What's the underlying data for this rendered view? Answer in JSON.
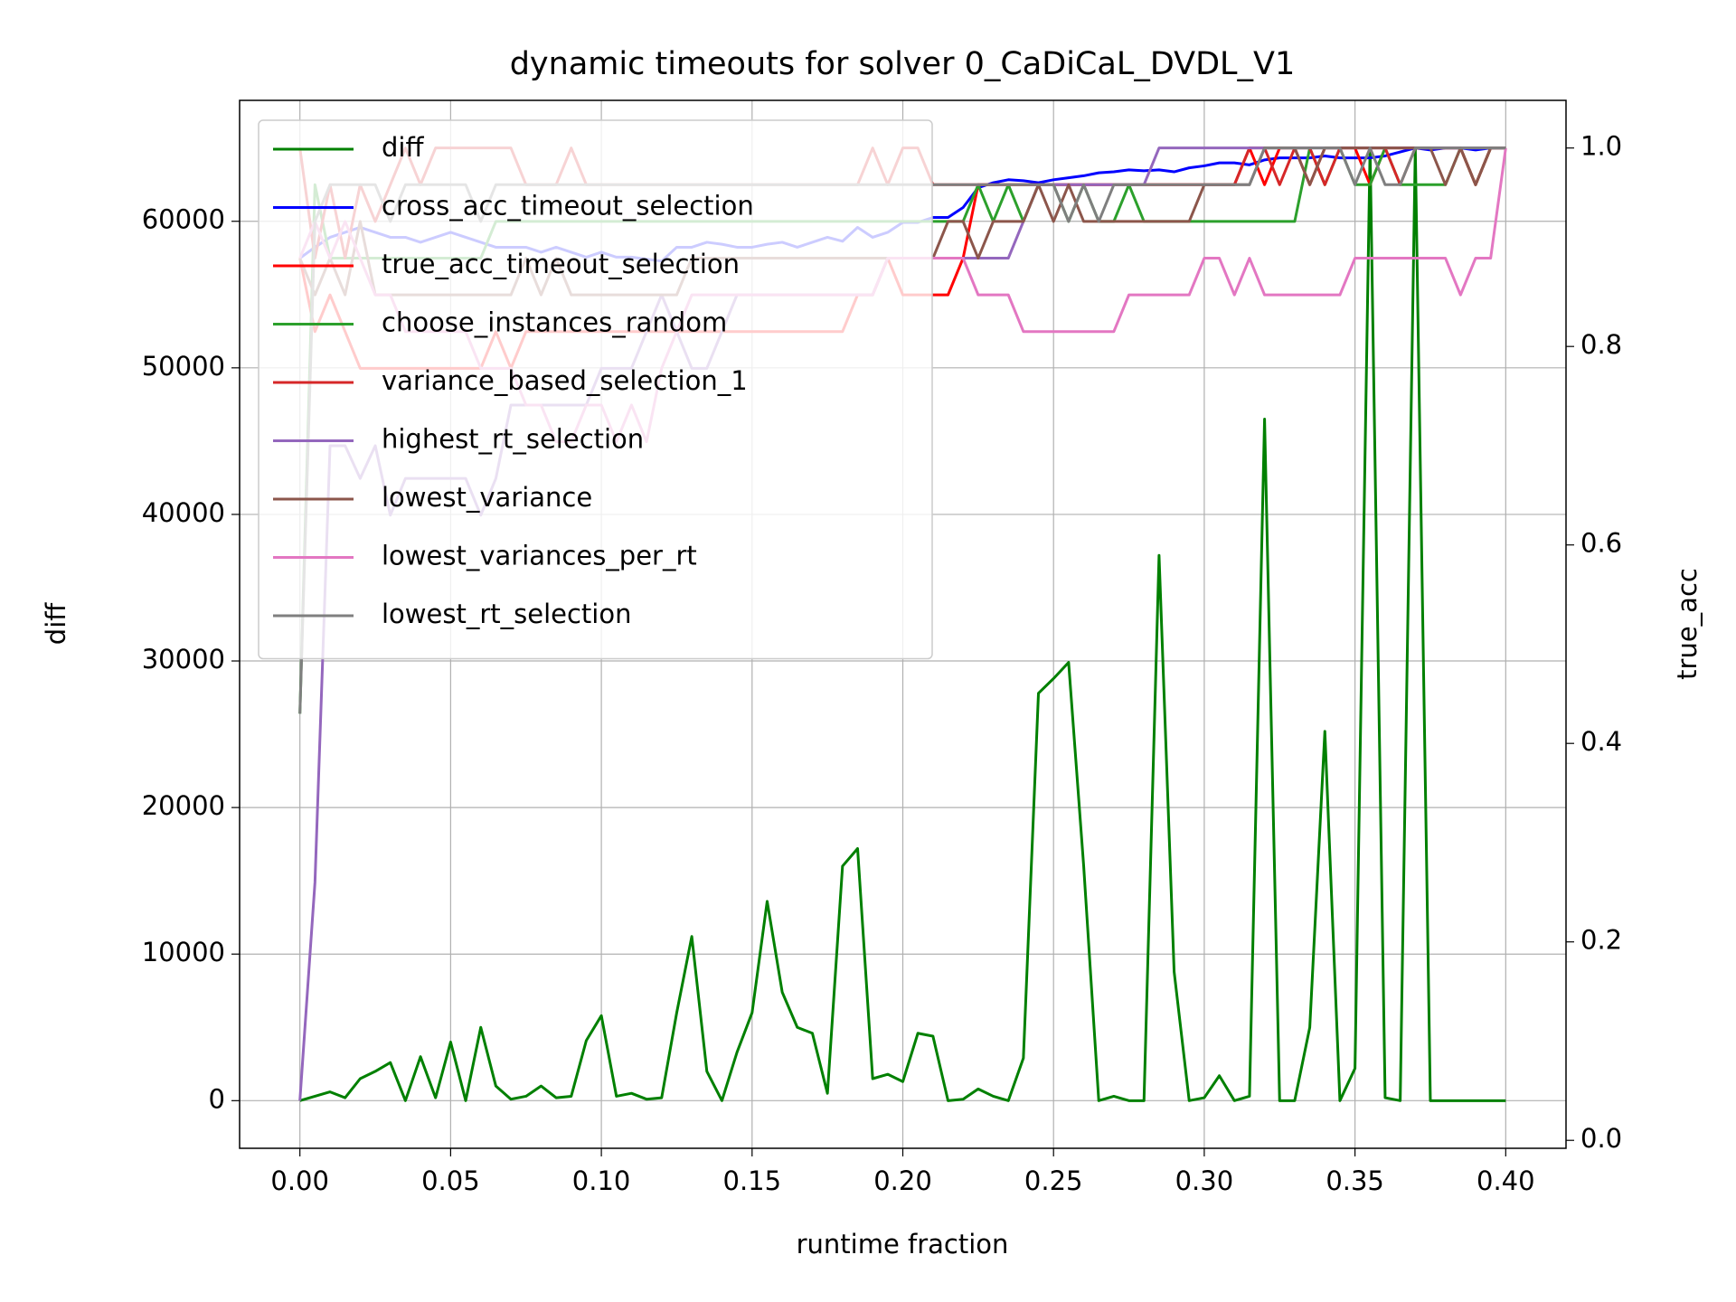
{
  "chart_data": {
    "type": "line",
    "title": "dynamic timeouts for solver 0_CaDiCaL_DVDL_V1",
    "x_label": "runtime fraction",
    "y_label": "diff",
    "y_label_color": "#008000",
    "y2_label": "true_acc",
    "y2_label_color": "#ff0000",
    "grid": true,
    "legend": "upper left",
    "xlim": [
      -0.02,
      0.42
    ],
    "xticks": [
      {
        "value": 0,
        "label": "0.00"
      },
      {
        "value": 0.05,
        "label": "0.05"
      },
      {
        "value": 0.1,
        "label": "0.10"
      },
      {
        "value": 0.15,
        "label": "0.15"
      },
      {
        "value": 0.2,
        "label": "0.20"
      },
      {
        "value": 0.25,
        "label": "0.25"
      },
      {
        "value": 0.3,
        "label": "0.30"
      },
      {
        "value": 0.35,
        "label": "0.35"
      },
      {
        "value": 0.4,
        "label": "0.40"
      }
    ],
    "ylim": [
      -3250,
      68250
    ],
    "yticks": [
      0,
      10000,
      20000,
      30000,
      40000,
      50000,
      60000
    ],
    "y2lim": [
      -0.008,
      1.048
    ],
    "y2ticks": [
      {
        "value": 0,
        "label": "0.0"
      },
      0.2,
      0.4,
      0.6,
      0.8,
      {
        "value": 1,
        "label": "1.0"
      }
    ],
    "x": [
      0,
      0.005,
      0.01,
      0.015,
      0.02,
      0.025,
      0.03,
      0.035,
      0.04,
      0.045,
      0.05,
      0.055,
      0.06,
      0.065,
      0.07,
      0.075,
      0.08,
      0.085,
      0.09,
      0.095,
      0.1,
      0.105,
      0.11,
      0.115,
      0.12,
      0.125,
      0.13,
      0.135,
      0.14,
      0.145,
      0.15,
      0.155,
      0.16,
      0.165,
      0.17,
      0.175,
      0.18,
      0.185,
      0.19,
      0.195,
      0.2,
      0.205,
      0.21,
      0.215,
      0.22,
      0.225,
      0.23,
      0.235,
      0.24,
      0.245,
      0.25,
      0.255,
      0.26,
      0.265,
      0.27,
      0.275,
      0.28,
      0.285,
      0.29,
      0.295,
      0.3,
      0.305,
      0.31,
      0.315,
      0.32,
      0.325,
      0.33,
      0.335,
      0.34,
      0.345,
      0.35,
      0.355,
      0.36,
      0.365,
      0.37,
      0.375,
      0.38,
      0.385,
      0.39,
      0.395,
      0.4
    ],
    "series": [
      {
        "name": "diff",
        "color": "#008000",
        "axis": "y",
        "values": [
          0,
          300,
          600,
          200,
          1500,
          2000,
          2600,
          0,
          3000,
          200,
          4000,
          0,
          5000,
          1000,
          100,
          300,
          1000,
          200,
          300,
          4100,
          5800,
          300,
          500,
          100,
          200,
          6000,
          11200,
          2000,
          0,
          3300,
          6000,
          13600,
          7400,
          5000,
          4600,
          500,
          16000,
          17200,
          1500,
          1800,
          1300,
          4600,
          4400,
          0,
          100,
          800,
          300,
          0,
          2900,
          27800,
          28800,
          29900,
          16000,
          0,
          300,
          0,
          0,
          37200,
          8800,
          0,
          200,
          1700,
          0,
          300,
          46500,
          0,
          0,
          5000,
          25200,
          0,
          2200,
          65000,
          200,
          0,
          65000,
          0,
          0,
          0,
          0,
          0,
          0
        ]
      },
      {
        "name": "cross_acc_timeout_selection",
        "color": "#0000ff",
        "axis": "y2",
        "values": [
          0.889,
          0.9,
          0.91,
          0.915,
          0.92,
          0.915,
          0.91,
          0.91,
          0.905,
          0.91,
          0.915,
          0.91,
          0.905,
          0.9,
          0.9,
          0.9,
          0.895,
          0.9,
          0.895,
          0.89,
          0.895,
          0.89,
          0.89,
          0.888,
          0.886,
          0.9,
          0.9,
          0.905,
          0.903,
          0.9,
          0.9,
          0.903,
          0.905,
          0.9,
          0.905,
          0.91,
          0.906,
          0.92,
          0.91,
          0.915,
          0.925,
          0.925,
          0.93,
          0.93,
          0.94,
          0.96,
          0.965,
          0.968,
          0.967,
          0.965,
          0.968,
          0.97,
          0.972,
          0.975,
          0.976,
          0.978,
          0.977,
          0.978,
          0.976,
          0.98,
          0.982,
          0.985,
          0.985,
          0.983,
          0.988,
          0.99,
          0.99,
          0.99,
          0.992,
          0.99,
          0.99,
          0.99,
          0.992,
          0.996,
          1.0,
          0.998,
          1.0,
          1.0,
          0.998,
          1.0,
          1.0
        ]
      },
      {
        "name": "true_acc_timeout_selection",
        "color": "#ff0000",
        "axis": "y2",
        "values": [
          0.889,
          0.815,
          0.852,
          0.815,
          0.778,
          0.778,
          0.778,
          0.778,
          0.778,
          0.778,
          0.778,
          0.778,
          0.778,
          0.815,
          0.778,
          0.815,
          0.815,
          0.815,
          0.815,
          0.815,
          0.815,
          0.815,
          0.815,
          0.815,
          0.815,
          0.815,
          0.815,
          0.815,
          0.815,
          0.815,
          0.815,
          0.815,
          0.815,
          0.815,
          0.815,
          0.815,
          0.815,
          0.852,
          0.852,
          0.889,
          0.852,
          0.852,
          0.852,
          0.852,
          0.889,
          0.963,
          0.963,
          0.963,
          0.963,
          0.963,
          0.963,
          0.963,
          0.963,
          0.963,
          0.963,
          0.963,
          0.963,
          0.963,
          0.963,
          0.963,
          0.963,
          0.963,
          0.963,
          1.0,
          0.963,
          1.0,
          1.0,
          0.963,
          1.0,
          1.0,
          1.0,
          0.963,
          1.0,
          1.0,
          1.0,
          1.0,
          1.0,
          1.0,
          0.963,
          1.0,
          1.0
        ]
      },
      {
        "name": "choose_instances_random",
        "color": "#2ca02c",
        "axis": "y2",
        "values": [
          0.43,
          0.963,
          0.889,
          0.889,
          0.889,
          0.889,
          0.889,
          0.889,
          0.889,
          0.889,
          0.889,
          0.889,
          0.889,
          0.926,
          0.926,
          0.926,
          0.926,
          0.926,
          0.926,
          0.926,
          0.926,
          0.926,
          0.926,
          0.926,
          0.926,
          0.926,
          0.926,
          0.926,
          0.926,
          0.926,
          0.926,
          0.926,
          0.926,
          0.926,
          0.926,
          0.926,
          0.926,
          0.926,
          0.926,
          0.926,
          0.926,
          0.926,
          0.926,
          0.926,
          0.926,
          0.963,
          0.926,
          0.963,
          0.926,
          0.963,
          0.963,
          0.926,
          0.963,
          0.926,
          0.926,
          0.963,
          0.926,
          0.926,
          0.926,
          0.926,
          0.926,
          0.926,
          0.926,
          0.926,
          0.926,
          0.926,
          0.926,
          1.0,
          0.963,
          1.0,
          0.963,
          0.963,
          1.0,
          0.963,
          0.963,
          0.963,
          0.963,
          1.0,
          0.963,
          1.0,
          1.0
        ]
      },
      {
        "name": "variance_based_selection_1",
        "color": "#d62728",
        "axis": "y2",
        "values": [
          1.0,
          0.889,
          0.963,
          0.889,
          0.963,
          0.926,
          0.963,
          1.0,
          0.963,
          1.0,
          1.0,
          1.0,
          1.0,
          1.0,
          1.0,
          0.963,
          0.963,
          0.963,
          1.0,
          0.963,
          0.963,
          0.963,
          0.963,
          0.963,
          0.963,
          0.963,
          0.963,
          0.963,
          0.963,
          0.963,
          0.963,
          0.963,
          0.963,
          0.963,
          0.963,
          0.963,
          0.963,
          0.963,
          1.0,
          0.963,
          1.0,
          1.0,
          0.963,
          0.963,
          0.963,
          0.963,
          0.963,
          0.963,
          0.963,
          0.963,
          0.963,
          0.963,
          0.963,
          0.963,
          0.963,
          0.963,
          0.963,
          0.963,
          0.963,
          0.963,
          0.963,
          0.963,
          0.963,
          1.0,
          1.0,
          0.963,
          1.0,
          1.0,
          0.963,
          1.0,
          1.0,
          1.0,
          1.0,
          0.963,
          1.0,
          1.0,
          1.0,
          1.0,
          0.963,
          1.0,
          1.0
        ]
      },
      {
        "name": "highest_rt_selection",
        "color": "#9467bd",
        "axis": "y2",
        "values": [
          0.04,
          0.26,
          0.7,
          0.7,
          0.667,
          0.7,
          0.63,
          0.667,
          0.667,
          0.667,
          0.667,
          0.667,
          0.63,
          0.667,
          0.741,
          0.741,
          0.741,
          0.741,
          0.741,
          0.741,
          0.778,
          0.778,
          0.778,
          0.815,
          0.852,
          0.815,
          0.778,
          0.778,
          0.815,
          0.852,
          0.852,
          0.852,
          0.852,
          0.852,
          0.852,
          0.852,
          0.852,
          0.852,
          0.852,
          0.889,
          0.889,
          0.889,
          0.889,
          0.889,
          0.889,
          0.889,
          0.889,
          0.889,
          0.926,
          0.963,
          0.963,
          0.963,
          0.963,
          0.963,
          0.963,
          0.963,
          0.963,
          1.0,
          1.0,
          1.0,
          1.0,
          1.0,
          1.0,
          1.0,
          1.0,
          1.0,
          1.0,
          1.0,
          1.0,
          1.0,
          1.0,
          1.0,
          1.0,
          1.0,
          1.0,
          1.0,
          1.0,
          1.0,
          1.0,
          1.0,
          1.0
        ]
      },
      {
        "name": "lowest_variance",
        "color": "#8c564b",
        "axis": "y2",
        "values": [
          0.889,
          0.852,
          0.889,
          0.852,
          0.926,
          0.852,
          0.852,
          0.852,
          0.852,
          0.852,
          0.852,
          0.852,
          0.852,
          0.852,
          0.852,
          0.889,
          0.852,
          0.889,
          0.852,
          0.852,
          0.852,
          0.852,
          0.852,
          0.852,
          0.852,
          0.852,
          0.889,
          0.889,
          0.889,
          0.889,
          0.889,
          0.889,
          0.889,
          0.889,
          0.889,
          0.889,
          0.889,
          0.889,
          0.889,
          0.889,
          0.889,
          0.889,
          0.889,
          0.926,
          0.926,
          0.889,
          0.926,
          0.926,
          0.926,
          0.963,
          0.926,
          0.963,
          0.926,
          0.926,
          0.926,
          0.926,
          0.926,
          0.926,
          0.926,
          0.926,
          0.963,
          0.963,
          0.963,
          0.963,
          1.0,
          1.0,
          1.0,
          0.963,
          1.0,
          1.0,
          1.0,
          1.0,
          1.0,
          1.0,
          1.0,
          1.0,
          0.963,
          1.0,
          0.963,
          1.0,
          1.0
        ]
      },
      {
        "name": "lowest_variances_per_rt",
        "color": "#e377c2",
        "axis": "y2",
        "values": [
          0.889,
          0.926,
          0.889,
          0.926,
          0.889,
          0.852,
          0.852,
          0.815,
          0.815,
          0.815,
          0.815,
          0.815,
          0.778,
          0.778,
          0.778,
          0.741,
          0.741,
          0.704,
          0.704,
          0.741,
          0.741,
          0.704,
          0.741,
          0.704,
          0.778,
          0.815,
          0.852,
          0.852,
          0.852,
          0.852,
          0.852,
          0.852,
          0.852,
          0.852,
          0.852,
          0.852,
          0.852,
          0.852,
          0.852,
          0.889,
          0.889,
          0.889,
          0.889,
          0.889,
          0.889,
          0.852,
          0.852,
          0.852,
          0.815,
          0.815,
          0.815,
          0.815,
          0.815,
          0.815,
          0.815,
          0.852,
          0.852,
          0.852,
          0.852,
          0.852,
          0.889,
          0.889,
          0.852,
          0.889,
          0.852,
          0.852,
          0.852,
          0.852,
          0.852,
          0.852,
          0.889,
          0.889,
          0.889,
          0.889,
          0.889,
          0.889,
          0.889,
          0.852,
          0.889,
          0.889,
          1.0
        ]
      },
      {
        "name": "lowest_rt_selection",
        "color": "#7f7f7f",
        "axis": "y2",
        "values": [
          0.43,
          0.926,
          0.963,
          0.963,
          0.963,
          0.963,
          0.926,
          0.963,
          0.963,
          0.963,
          0.963,
          0.963,
          0.926,
          0.963,
          0.963,
          0.963,
          0.963,
          0.963,
          0.963,
          0.963,
          0.963,
          0.963,
          0.963,
          0.963,
          0.963,
          0.963,
          0.963,
          0.963,
          0.963,
          0.963,
          0.963,
          0.963,
          0.963,
          0.963,
          0.963,
          0.963,
          0.963,
          0.963,
          0.963,
          0.963,
          0.963,
          0.963,
          0.963,
          0.963,
          0.963,
          0.963,
          0.963,
          0.963,
          0.963,
          0.963,
          0.963,
          0.926,
          0.963,
          0.926,
          0.963,
          0.963,
          0.963,
          0.963,
          0.963,
          0.963,
          0.963,
          0.963,
          0.963,
          0.963,
          1.0,
          1.0,
          1.0,
          1.0,
          1.0,
          1.0,
          0.963,
          1.0,
          0.963,
          0.963,
          1.0,
          1.0,
          1.0,
          1.0,
          1.0,
          1.0,
          1.0
        ]
      }
    ]
  }
}
